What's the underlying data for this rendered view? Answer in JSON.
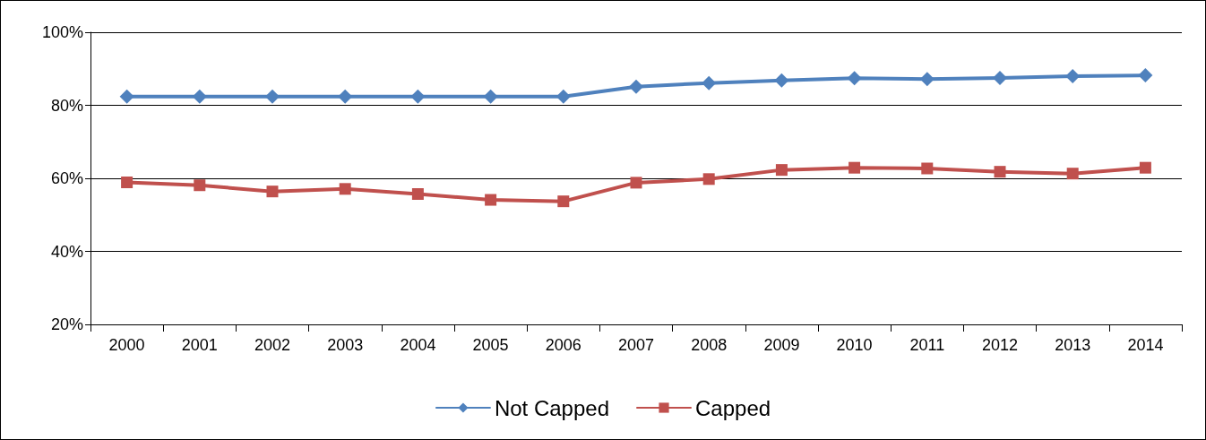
{
  "chart_data": {
    "type": "line",
    "categories": [
      "2000",
      "2001",
      "2002",
      "2003",
      "2004",
      "2005",
      "2006",
      "2007",
      "2008",
      "2009",
      "2010",
      "2011",
      "2012",
      "2013",
      "2014"
    ],
    "series": [
      {
        "name": "Not Capped",
        "color": "#4f81bd",
        "marker": "diamond",
        "values": [
          82.4,
          82.4,
          82.4,
          82.4,
          82.4,
          82.4,
          82.4,
          85.1,
          86.1,
          86.8,
          87.4,
          87.2,
          87.5,
          88.0,
          88.2
        ]
      },
      {
        "name": "Capped",
        "color": "#c0504d",
        "marker": "square",
        "values": [
          58.9,
          58.1,
          56.4,
          57.1,
          55.7,
          54.1,
          53.7,
          58.8,
          59.8,
          62.3,
          62.9,
          62.7,
          61.8,
          61.3,
          62.9
        ]
      }
    ],
    "ylim": [
      20,
      100
    ],
    "yticks": [
      {
        "value": 20,
        "label": "20%"
      },
      {
        "value": 40,
        "label": "40%"
      },
      {
        "value": 60,
        "label": "60%"
      },
      {
        "value": 80,
        "label": "80%"
      },
      {
        "value": 100,
        "label": "100%"
      }
    ],
    "grid": "y",
    "legend": "bottom",
    "line_style": "solid"
  }
}
